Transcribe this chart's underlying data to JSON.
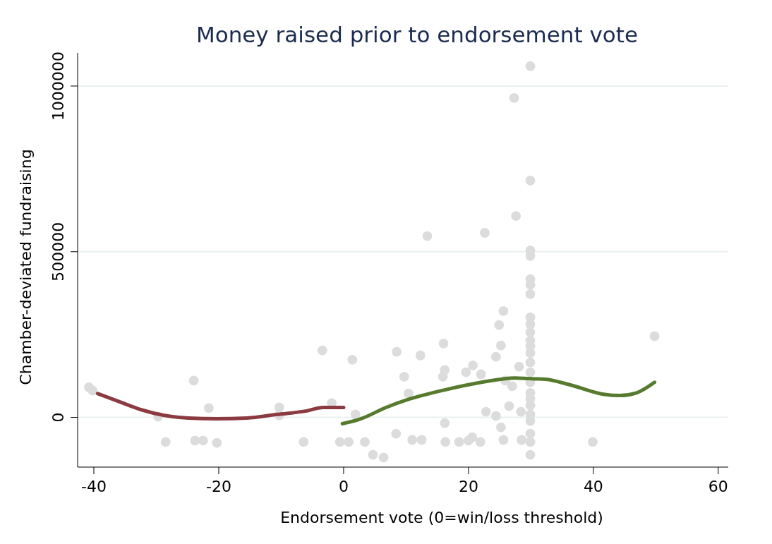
{
  "chart_data": {
    "type": "scatter",
    "title": "Money raised prior to endorsement vote",
    "xlabel": "Endorsement vote (0=win/loss threshold)",
    "ylabel": "Chamber-deviated fundraising",
    "xlim": [
      -42.6,
      61.6
    ],
    "ylim": [
      -150000,
      1100000
    ],
    "xticks": [
      -40,
      -20,
      0,
      20,
      40,
      60
    ],
    "yticks": [
      0,
      500000,
      1000000
    ],
    "grid": "y",
    "series": [
      {
        "marker": "circle",
        "color": "#dcdcdc",
        "x": [
          -40.8,
          -40.2,
          -24,
          -29.7,
          -28.5,
          -23.8,
          -22.5,
          -21.6,
          -20.3,
          -10.3,
          -10.3,
          -6.4,
          -3.4,
          -1.9,
          -0.6,
          0.8,
          1.4,
          1.9,
          3.4,
          4.7,
          6.4,
          8.5,
          8.4,
          9.7,
          10.4,
          12.3,
          16,
          16.2,
          15.9,
          19.6,
          20.7,
          22,
          16.2,
          22.8,
          24.4,
          24.4,
          24.9,
          25.6,
          25.2,
          26.5,
          28.1,
          28.4,
          27,
          25.9,
          11,
          12.5,
          16.3,
          18.5,
          20,
          20.6,
          21.9,
          25.6,
          25.2,
          28.5,
          13.4,
          22.6,
          27.6,
          27.3,
          29.9,
          29.9,
          29.9,
          29.9,
          29.9,
          29.9,
          29.9,
          29.9,
          29.9,
          29.9,
          29.9,
          29.9,
          29.9,
          29.9,
          29.9,
          29.9,
          29.9,
          29.9,
          29.9,
          29.9,
          29.9,
          29.9,
          29.9,
          29.9,
          49.8,
          39.9
        ],
        "values": [
          91000,
          81000,
          111000,
          2000,
          -74000,
          -70000,
          -70000,
          28000,
          -77000,
          30000,
          6000,
          -74000,
          202000,
          43000,
          -74000,
          -74000,
          174000,
          9000,
          -74000,
          -113000,
          -121000,
          198000,
          -49000,
          123000,
          72000,
          187000,
          223000,
          143000,
          123000,
          136000,
          157000,
          130000,
          -17000,
          17000,
          4000,
          183000,
          279000,
          321000,
          217000,
          34000,
          153000,
          17000,
          94000,
          111000,
          -68000,
          -68000,
          -74000,
          -74000,
          -70000,
          -60000,
          -74000,
          -68000,
          -30000,
          -68000,
          547000,
          557000,
          608000,
          964000,
          1060000,
          715000,
          504000,
          487000,
          417000,
          400000,
          372000,
          302000,
          281000,
          257000,
          232000,
          215000,
          194000,
          166000,
          136000,
          106000,
          74000,
          57000,
          36000,
          9000,
          -11000,
          -49000,
          -74000,
          -113000,
          245000,
          -74000
        ]
      },
      {
        "type": "line",
        "color": "#8b3a40",
        "x": [
          -39.4,
          -35.6,
          -32.4,
          -28.7,
          -24.9,
          -20.3,
          -15.5,
          -10.6,
          -6.1,
          -3.3,
          0
        ],
        "values": [
          72000,
          45000,
          23000,
          6000,
          -2000,
          -4000,
          -2000,
          9000,
          19000,
          30000,
          30000
        ]
      },
      {
        "type": "line",
        "color": "#567a2e",
        "x": [
          -0.2,
          2.8,
          6.8,
          10.5,
          16.2,
          21.8,
          27.5,
          29.7,
          32.3,
          36.3,
          41.6,
          44.2,
          46.9,
          49.8
        ],
        "values": [
          -19000,
          -4000,
          30000,
          55000,
          83000,
          105000,
          119000,
          117000,
          115000,
          98000,
          70000,
          66000,
          74000,
          106000
        ]
      }
    ]
  }
}
